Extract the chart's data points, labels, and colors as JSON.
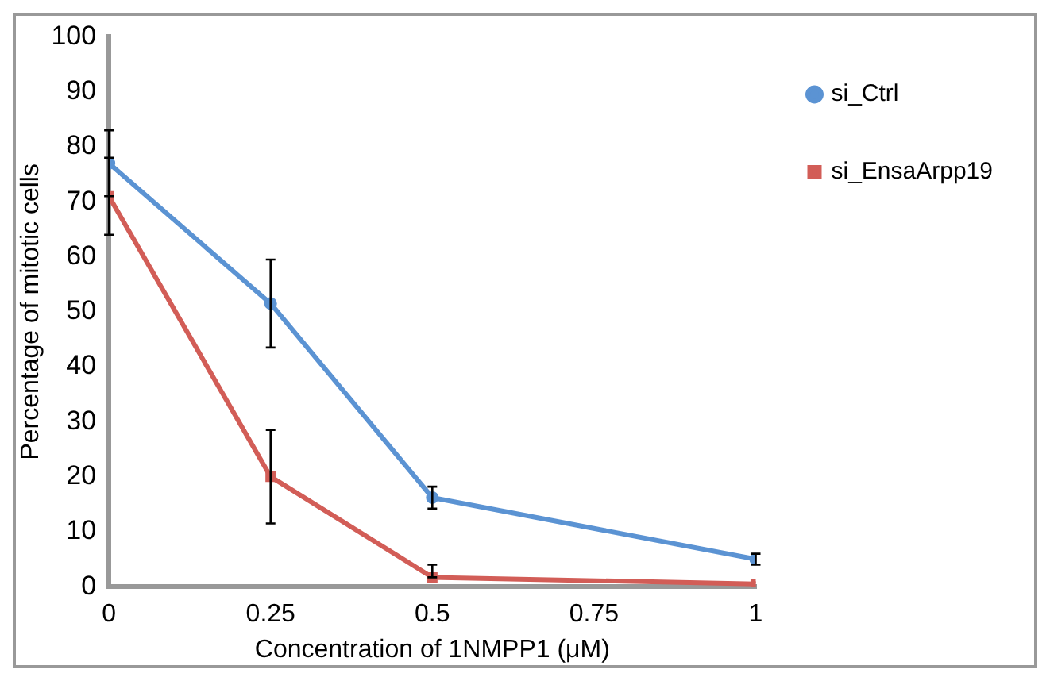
{
  "chart_data": {
    "type": "line",
    "xlabel": "Concentration of 1NMPP1 (μM)",
    "ylabel": "Percentage of mitotic cells",
    "x": [
      0,
      0.25,
      0.5,
      1
    ],
    "xlim": [
      0,
      1
    ],
    "xticks": [
      0,
      0.25,
      0.5,
      0.75,
      1
    ],
    "ylim": [
      0,
      100
    ],
    "yticks": [
      0,
      10,
      20,
      30,
      40,
      50,
      60,
      70,
      80,
      90,
      100
    ],
    "grid": false,
    "legend": "right",
    "line_style": "solid",
    "series": [
      {
        "name": "si_Ctrl",
        "color": "#5b93d3",
        "marker": "circle",
        "values": [
          77,
          51.5,
          16.2,
          5
        ],
        "errors": [
          6,
          8,
          2,
          1
        ]
      },
      {
        "name": "si_EnsaArpp19",
        "color": "#d25d57",
        "marker": "square",
        "values": [
          71,
          20,
          1.7,
          0.5
        ],
        "errors": [
          7,
          8.5,
          [
            1.7,
            4
          ],
          null
        ]
      }
    ]
  }
}
